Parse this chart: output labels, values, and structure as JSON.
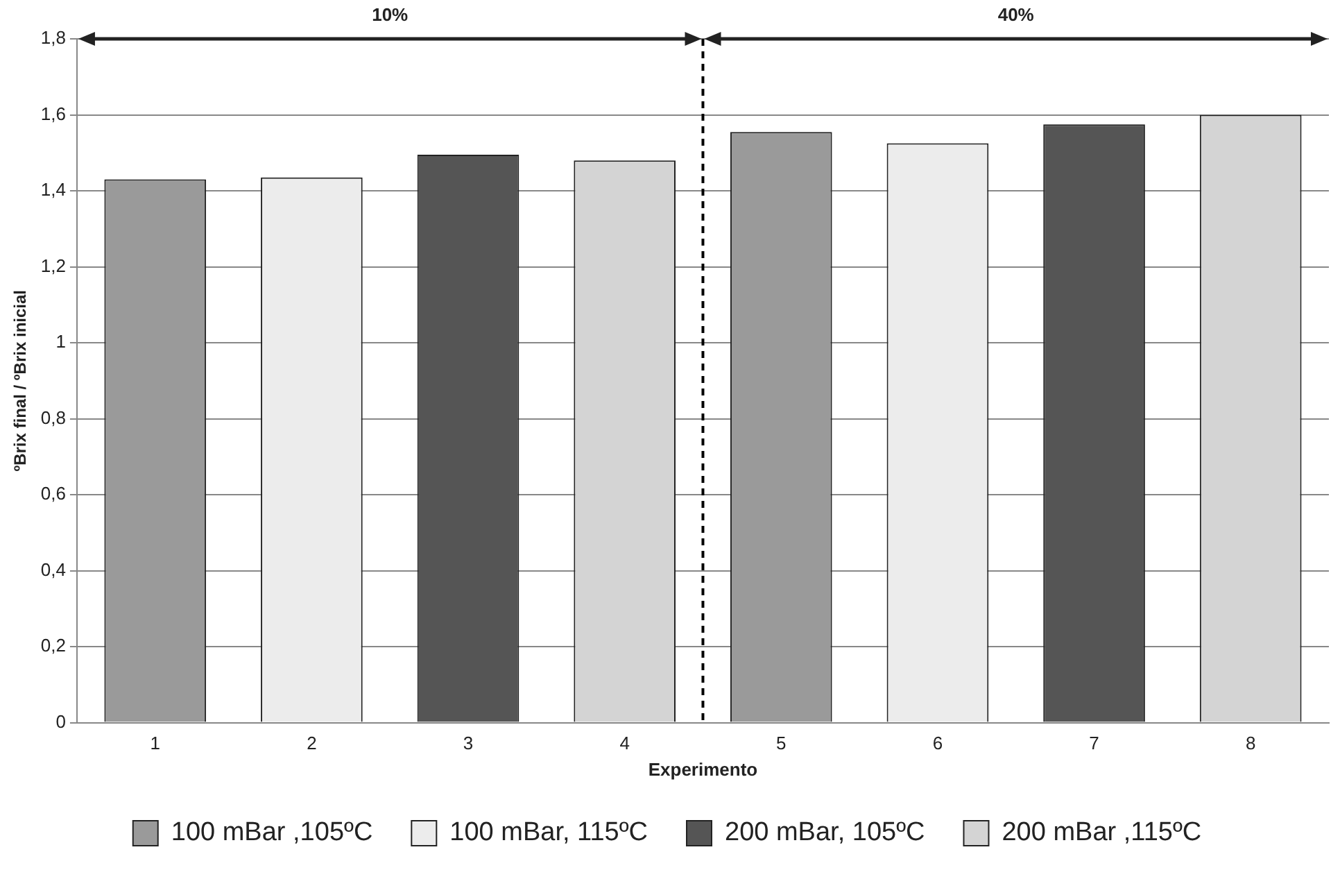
{
  "chart_data": {
    "type": "bar",
    "xlabel": "Experimento",
    "ylabel": "ºBrix final / ºBrix inicial",
    "xlim": [
      0.5,
      8.5
    ],
    "xticks": [
      1,
      2,
      3,
      4,
      5,
      6,
      7,
      8
    ],
    "ylim": [
      0,
      1.8
    ],
    "yticks": [
      0,
      {
        "value": 0.2,
        "label": "0,2"
      },
      {
        "value": 0.4,
        "label": "0,4"
      },
      {
        "value": 0.6,
        "label": "0,6"
      },
      {
        "value": 0.8,
        "label": "0,8"
      },
      1,
      {
        "value": 1.2,
        "label": "1,2"
      },
      {
        "value": 1.4,
        "label": "1,4"
      },
      {
        "value": 1.6,
        "label": "1,6"
      },
      {
        "value": 1.8,
        "label": "1,8"
      }
    ],
    "series": [
      {
        "name": "100 mBar ,105ºC",
        "color": "#9a9a9a",
        "x": [
          1,
          5
        ],
        "values": [
          1.43,
          1.555
        ]
      },
      {
        "name": "100 mBar, 115ºC",
        "color": "#ececec",
        "x": [
          2,
          6
        ],
        "values": [
          1.435,
          1.525
        ]
      },
      {
        "name": "200 mBar, 105ºC",
        "color": "#555555",
        "x": [
          3,
          7
        ],
        "values": [
          1.495,
          1.575
        ]
      },
      {
        "name": "200 mBar ,115ºC",
        "color": "#d4d4d4",
        "x": [
          4,
          8
        ],
        "values": [
          1.48,
          1.6
        ]
      }
    ],
    "ref_lines": [
      {
        "axis": "x",
        "value": 4.5,
        "line_style": "dashed",
        "color": "#000000"
      }
    ],
    "annotations": [
      "10%",
      "40%"
    ],
    "grid": "y",
    "legend": "bottom"
  }
}
